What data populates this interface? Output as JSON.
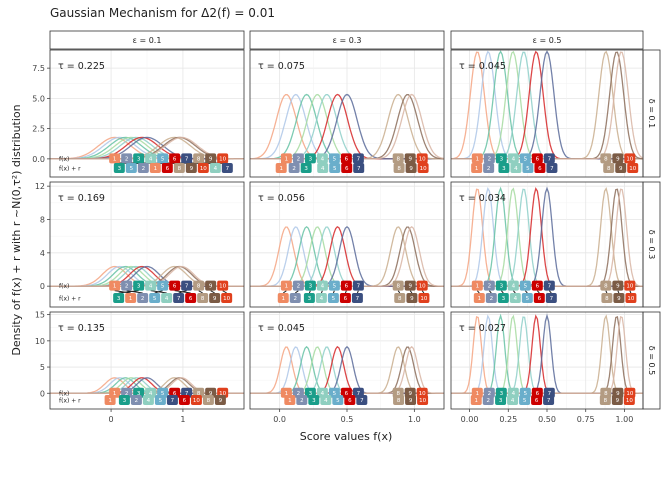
{
  "chart_data": {
    "type": "line",
    "title": "Gaussian Mechanism for Δ2(f) = 0.01",
    "xlabel": "Score values f(x)",
    "ylabel": "Density of f(x) + r with r ~N(0,τ²) distribution",
    "column_strips": [
      "ε = 0.1",
      "ε = 0.3",
      "ε = 0.5"
    ],
    "row_strips": [
      "δ = 0.1",
      "δ = 0.3",
      "δ = 0.5"
    ],
    "row_labels": [
      "f(x)",
      "f(x) + r"
    ],
    "row_ylims": [
      [
        -1.5,
        9
      ],
      [
        -2.5,
        12.5
      ],
      [
        -3,
        15.5
      ]
    ],
    "row_yticks": [
      [
        0,
        2.5,
        5,
        7.5
      ],
      [
        0,
        4,
        8,
        12
      ],
      [
        0,
        5,
        10,
        15
      ]
    ],
    "row_ytick_labels": [
      [
        "0.0",
        "2.5",
        "5.0",
        "7.5"
      ],
      [
        "0",
        "4",
        "8",
        "12"
      ],
      [
        "0",
        "5",
        "10",
        "15"
      ]
    ],
    "column_xlims": [
      [
        -0.85,
        1.85
      ],
      [
        -0.22,
        1.22
      ],
      [
        -0.12,
        1.12
      ]
    ],
    "column_xticks": [
      [
        0,
        1
      ],
      [
        0,
        0.5,
        1
      ],
      [
        0,
        0.25,
        0.5,
        0.75,
        1
      ]
    ],
    "column_xtick_labels": [
      [
        "0",
        "1"
      ],
      [
        "0.0",
        "0.5",
        "1.0"
      ],
      [
        "0.00",
        "0.25",
        "0.50",
        "0.75",
        "1.00"
      ]
    ],
    "scores": [
      0.05,
      0.12,
      0.2,
      0.28,
      0.35,
      0.43,
      0.5,
      0.88,
      0.95,
      0.98
    ],
    "score_labels": [
      "1",
      "2",
      "3",
      "4",
      "5",
      "6",
      "7",
      "8",
      "9",
      "10"
    ],
    "colors": [
      "#f4a582",
      "#aec7e8",
      "#66c2a5",
      "#a6dba0",
      "#8ecfc9",
      "#d62728",
      "#5a6b9a",
      "#c9ae8e",
      "#8c6d5a",
      "#d8b5a5"
    ],
    "label_colors": [
      "#ef8a62",
      "#7f8fb0",
      "#1a9e8a",
      "#8fcfc0",
      "#6aaecb",
      "#cc0000",
      "#3b4f80",
      "#b39b82",
      "#7b5b45",
      "#e0401d"
    ],
    "panels": [
      {
        "tau_text": "τ = 0.225",
        "tau": 0.225,
        "noisy_order": [
          "3",
          "5",
          "2",
          "1",
          "6",
          "8",
          "9",
          "4",
          "7",
          "10"
        ]
      },
      {
        "tau_text": "τ = 0.075",
        "tau": 0.075,
        "noisy_order": [
          "1",
          "2",
          "3",
          "4",
          "5",
          "6",
          "7",
          "8",
          "9",
          "10"
        ]
      },
      {
        "tau_text": "τ = 0.045",
        "tau": 0.045,
        "noisy_order": [
          "1",
          "2",
          "3",
          "4",
          "5",
          "6",
          "7",
          "8",
          "9",
          "10"
        ]
      },
      {
        "tau_text": "τ = 0.169",
        "tau": 0.169,
        "noisy_order": [
          "1",
          "2",
          "3",
          "5",
          "4",
          "6",
          "7",
          "8",
          "9",
          "10"
        ]
      },
      {
        "tau_text": "τ = 0.056",
        "tau": 0.056,
        "noisy_order": [
          "1",
          "2",
          "3",
          "4",
          "5",
          "6",
          "7",
          "8",
          "9",
          "10"
        ]
      },
      {
        "tau_text": "τ = 0.034",
        "tau": 0.034,
        "noisy_order": [
          "1",
          "2",
          "3",
          "4",
          "5",
          "6",
          "7",
          "8",
          "9",
          "10"
        ]
      },
      {
        "tau_text": "τ = 0.135",
        "tau": 0.135,
        "noisy_order": [
          "1",
          "3",
          "2",
          "4",
          "5",
          "6",
          "7",
          "8",
          "9",
          "10"
        ]
      },
      {
        "tau_text": "τ = 0.045",
        "tau": 0.045,
        "noisy_order": [
          "1",
          "2",
          "3",
          "4",
          "5",
          "6",
          "7",
          "8",
          "9",
          "10"
        ]
      },
      {
        "tau_text": "τ = 0.027",
        "tau": 0.027,
        "noisy_order": [
          "1",
          "2",
          "3",
          "4",
          "5",
          "6",
          "7",
          "8",
          "9",
          "10"
        ]
      }
    ]
  }
}
